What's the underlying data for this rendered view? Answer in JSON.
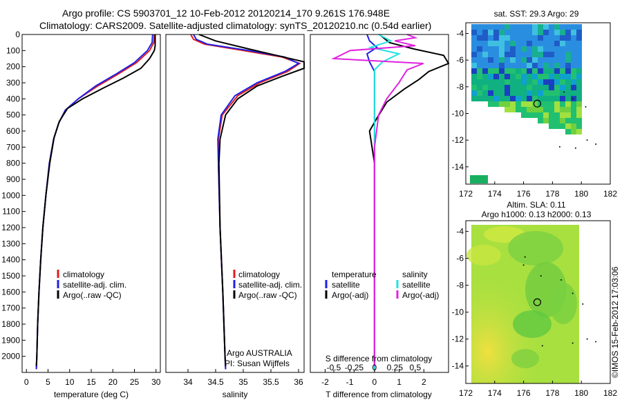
{
  "header": {
    "line1": "Argo profile: CS 5903701_12 10-Feb-2012 20120214_170 9.261S 176.948E",
    "line2": "Climatology: CARS2009. Satellite-adjusted climatology: synTS_20120210.nc (0.54d earlier)"
  },
  "colors": {
    "climatology": "#e41a1c",
    "satellite": "#1f1fe6",
    "argo": "#000000",
    "sal_satellite": "#22e0e0",
    "sal_argo": "#e020e0"
  },
  "chart_data": [
    {
      "type": "line",
      "panel": "temperature",
      "xlabel": "temperature (deg C)",
      "xlim": [
        -1,
        31
      ],
      "xticks": [
        0,
        5,
        10,
        15,
        20,
        25,
        30
      ],
      "ylim": [
        2100,
        0
      ],
      "yticks": [
        0,
        100,
        200,
        300,
        400,
        500,
        600,
        700,
        800,
        900,
        1000,
        1100,
        1200,
        1300,
        1400,
        1500,
        1600,
        1700,
        1800,
        1900,
        2000
      ],
      "legend": [
        "climatology",
        "satellite-adj. clim.",
        "Argo(..raw -QC)"
      ],
      "series": [
        {
          "name": "climatology",
          "color_key": "climatology",
          "points": [
            [
              29.6,
              0
            ],
            [
              29.5,
              50
            ],
            [
              28.5,
              100
            ],
            [
              25.5,
              175
            ],
            [
              21,
              250
            ],
            [
              16.5,
              320
            ],
            [
              12,
              400
            ],
            [
              9,
              470
            ],
            [
              7.5,
              550
            ],
            [
              6.3,
              650
            ],
            [
              5.3,
              800
            ],
            [
              4.5,
              1000
            ],
            [
              3.8,
              1200
            ],
            [
              3.3,
              1400
            ],
            [
              2.9,
              1600
            ],
            [
              2.6,
              1800
            ],
            [
              2.4,
              2000
            ],
            [
              2.3,
              2080
            ]
          ]
        },
        {
          "name": "satellite-adj. clim.",
          "color_key": "satellite",
          "points": [
            [
              29.2,
              0
            ],
            [
              29.1,
              50
            ],
            [
              28,
              100
            ],
            [
              25,
              175
            ],
            [
              20.5,
              250
            ],
            [
              16,
              320
            ],
            [
              12,
              400
            ],
            [
              9,
              470
            ],
            [
              7.5,
              550
            ],
            [
              6.3,
              650
            ],
            [
              5.3,
              800
            ],
            [
              4.5,
              1000
            ],
            [
              3.8,
              1200
            ],
            [
              3.3,
              1400
            ],
            [
              2.9,
              1600
            ],
            [
              2.6,
              1800
            ],
            [
              2.4,
              2000
            ],
            [
              2.3,
              2080
            ]
          ]
        },
        {
          "name": "Argo(..raw -QC)",
          "color_key": "argo",
          "points": [
            [
              29.8,
              0
            ],
            [
              29.8,
              70
            ],
            [
              29.6,
              100
            ],
            [
              28.5,
              150
            ],
            [
              26.5,
              210
            ],
            [
              22.5,
              270
            ],
            [
              18,
              330
            ],
            [
              13,
              400
            ],
            [
              9.5,
              460
            ],
            [
              7.6,
              540
            ],
            [
              6.4,
              640
            ],
            [
              5.4,
              800
            ],
            [
              4.5,
              1000
            ],
            [
              3.8,
              1200
            ],
            [
              3.3,
              1400
            ],
            [
              2.9,
              1600
            ],
            [
              2.6,
              1800
            ],
            [
              2.4,
              2000
            ],
            [
              2.3,
              2060
            ]
          ]
        }
      ]
    },
    {
      "type": "line",
      "panel": "salinity",
      "xlabel": "salinity",
      "xlim": [
        33.6,
        36.1
      ],
      "xticks": [
        34,
        34.5,
        35,
        35.5,
        36
      ],
      "ylim": [
        2100,
        0
      ],
      "legend": [
        "climatology",
        "satellite-adj. clim.",
        "Argo(..raw -QC)"
      ],
      "annotation": [
        "Argo AUSTRALIA",
        "PI: Susan Wijffels"
      ],
      "series": [
        {
          "name": "climatology",
          "color_key": "climatology",
          "points": [
            [
              34.05,
              0
            ],
            [
              34.1,
              30
            ],
            [
              34.3,
              60
            ],
            [
              35,
              100
            ],
            [
              35.7,
              140
            ],
            [
              36.02,
              180
            ],
            [
              35.8,
              230
            ],
            [
              35.3,
              300
            ],
            [
              34.9,
              380
            ],
            [
              34.62,
              500
            ],
            [
              34.55,
              650
            ],
            [
              34.55,
              800
            ],
            [
              34.58,
              1200
            ],
            [
              34.63,
              1600
            ],
            [
              34.67,
              2000
            ],
            [
              34.68,
              2080
            ]
          ]
        },
        {
          "name": "satellite-adj. clim.",
          "color_key": "satellite",
          "points": [
            [
              34.1,
              0
            ],
            [
              34.15,
              30
            ],
            [
              34.35,
              60
            ],
            [
              35.1,
              100
            ],
            [
              35.75,
              140
            ],
            [
              36.0,
              180
            ],
            [
              35.75,
              230
            ],
            [
              35.25,
              300
            ],
            [
              34.85,
              380
            ],
            [
              34.6,
              500
            ],
            [
              34.54,
              650
            ],
            [
              34.55,
              800
            ],
            [
              34.58,
              1200
            ],
            [
              34.63,
              1600
            ],
            [
              34.67,
              2000
            ],
            [
              34.68,
              2080
            ]
          ]
        },
        {
          "name": "Argo(..raw -QC)",
          "color_key": "argo",
          "points": [
            [
              34.2,
              0
            ],
            [
              34.5,
              40
            ],
            [
              35.1,
              90
            ],
            [
              35.6,
              130
            ],
            [
              36.1,
              170
            ],
            [
              36.1,
              210
            ],
            [
              35.7,
              260
            ],
            [
              35.25,
              320
            ],
            [
              34.9,
              400
            ],
            [
              34.68,
              500
            ],
            [
              34.58,
              650
            ],
            [
              34.56,
              800
            ],
            [
              34.58,
              1200
            ],
            [
              34.63,
              1600
            ],
            [
              34.67,
              2000
            ],
            [
              34.68,
              2060
            ]
          ]
        }
      ]
    },
    {
      "type": "line",
      "panel": "difference",
      "xlabel_top": "S difference from climatology",
      "xlabel": "T difference from climatology",
      "xlim": [
        -2.6,
        3.0
      ],
      "xticks": [
        -2,
        -1,
        0,
        1,
        2
      ],
      "sticks": [
        -0.5,
        -0.25,
        0,
        0.25,
        0.5
      ],
      "ylim": [
        2100,
        0
      ],
      "legend_left": {
        "title": "temperature",
        "items": [
          "satellite",
          "Argo(-adj)"
        ]
      },
      "legend_right": {
        "title": "salinity",
        "items": [
          "satellite",
          "Argo(-adj)"
        ]
      },
      "series": [
        {
          "name": "satellite",
          "group": "temperature",
          "color_key": "satellite",
          "points": [
            [
              -0.3,
              0
            ],
            [
              -0.2,
              40
            ],
            [
              0.1,
              80
            ],
            [
              -0.3,
              120
            ],
            [
              -0.2,
              170
            ],
            [
              0,
              230
            ],
            [
              0,
              300
            ],
            [
              0,
              1000
            ],
            [
              0,
              2080
            ]
          ]
        },
        {
          "name": "Argo(-adj)",
          "group": "temperature",
          "color_key": "argo",
          "points": [
            [
              0.2,
              0
            ],
            [
              0.6,
              50
            ],
            [
              1.6,
              90
            ],
            [
              2.8,
              130
            ],
            [
              3.0,
              180
            ],
            [
              2.2,
              230
            ],
            [
              1.8,
              280
            ],
            [
              1.2,
              340
            ],
            [
              0.5,
              420
            ],
            [
              0.1,
              520
            ],
            [
              -0.2,
              600
            ],
            [
              -0.1,
              700
            ],
            [
              0,
              800
            ],
            [
              0,
              1100
            ],
            [
              0,
              2060
            ]
          ]
        },
        {
          "name": "satellite",
          "group": "salinity",
          "color_key": "sal_satellite",
          "points": [
            [
              0.05,
              0
            ],
            [
              0.2,
              40
            ],
            [
              -0.05,
              80
            ],
            [
              0.3,
              120
            ],
            [
              0.1,
              170
            ],
            [
              0,
              220
            ],
            [
              0,
              300
            ],
            [
              0,
              800
            ],
            [
              0,
              2080
            ]
          ]
        },
        {
          "name": "Argo(-adj)",
          "group": "salinity",
          "color_key": "sal_argo",
          "points": [
            [
              0.4,
              0
            ],
            [
              0.5,
              20
            ],
            [
              0.25,
              40
            ],
            [
              0.5,
              70
            ],
            [
              -0.3,
              100
            ],
            [
              -0.5,
              150
            ],
            [
              0.6,
              180
            ],
            [
              0.4,
              220
            ],
            [
              0.3,
              300
            ],
            [
              0.15,
              400
            ],
            [
              0.05,
              500
            ],
            [
              0,
              700
            ],
            [
              0,
              1200
            ],
            [
              0,
              2060
            ]
          ]
        }
      ]
    },
    {
      "type": "heatmap",
      "panel": "sst_map",
      "title": "sat. SST: 29.3 Argo: 29",
      "xlim": [
        172,
        182
      ],
      "xticks": [
        172,
        174,
        176,
        178,
        180,
        182
      ],
      "ylim": [
        -15.3,
        -3.2
      ],
      "yticks": [
        -4,
        -6,
        -8,
        -10,
        -12,
        -14
      ],
      "marker": [
        176.948,
        -9.261
      ]
    },
    {
      "type": "heatmap",
      "panel": "sla_map",
      "title": "Altim. SLA: 0.11",
      "title2": "Argo h1000: 0.13 h2000: 0.13",
      "xlim": [
        172,
        182
      ],
      "xticks": [
        172,
        174,
        176,
        178,
        180,
        182
      ],
      "ylim": [
        -15.3,
        -3.2
      ],
      "yticks": [
        -4,
        -6,
        -8,
        -10,
        -12,
        -14
      ],
      "marker": [
        176.948,
        -9.261
      ]
    }
  ],
  "side_label": "©IMOS 15-Feb-2012 17:03:06"
}
